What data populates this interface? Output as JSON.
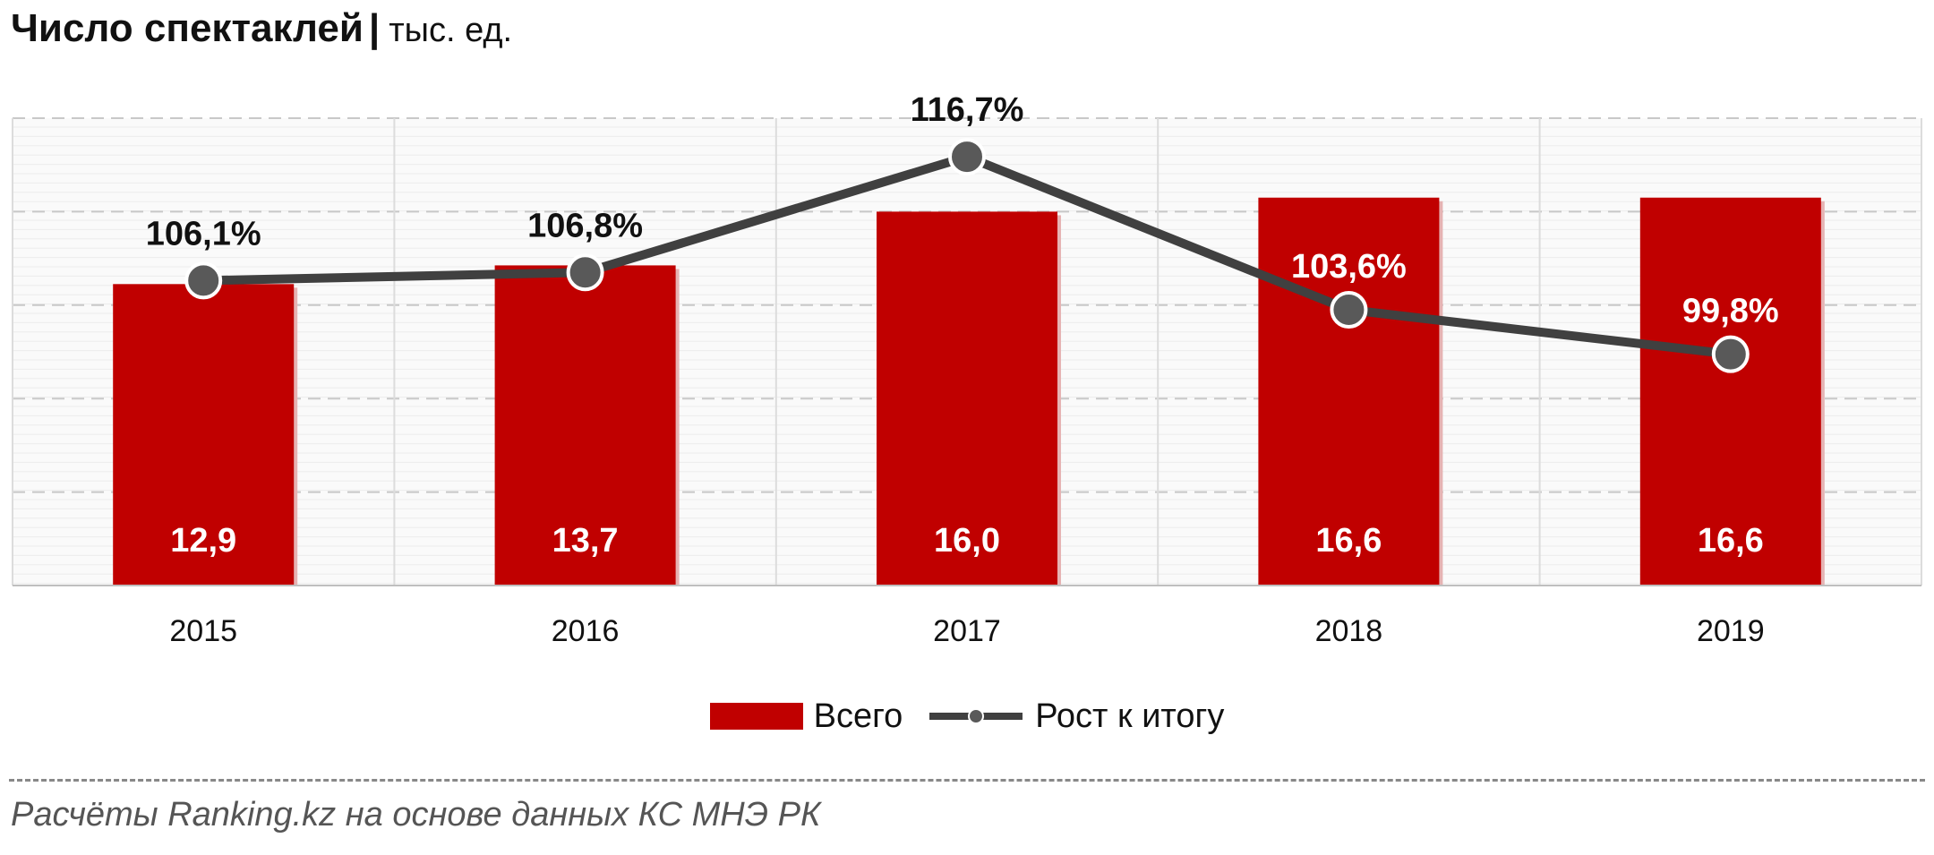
{
  "title": {
    "main": "Число спектаклей",
    "separator": "|",
    "unit": "тыс. ед."
  },
  "colors": {
    "bar": "#c00000",
    "line": "#404040",
    "marker_fill": "#595959",
    "marker_stroke": "#ffffff"
  },
  "chart_data": {
    "type": "bar",
    "categories": [
      "2015",
      "2016",
      "2017",
      "2018",
      "2019"
    ],
    "series": [
      {
        "name": "Всего",
        "type": "bar",
        "values": [
          12.9,
          13.7,
          16.0,
          16.6,
          16.6
        ],
        "labels": [
          "12,9",
          "13,7",
          "16,0",
          "16,6",
          "16,6"
        ]
      },
      {
        "name": "Рост к итогу",
        "type": "line",
        "values": [
          106.1,
          106.8,
          116.7,
          103.6,
          99.8
        ],
        "labels": [
          "106,1%",
          "106,8%",
          "116,7%",
          "103,6%",
          "99,8%"
        ]
      }
    ],
    "primary_axis": {
      "min": 0,
      "max": 20,
      "ticks_shown": false
    },
    "secondary_axis": {
      "min": 80,
      "max": 120,
      "ticks_shown": false
    },
    "grid": true,
    "legend": "bottom"
  },
  "legend": {
    "bar_label": "Всего",
    "line_label": "Рост к итогу"
  },
  "source": "Расчёты Ranking.kz на основе данных КС МНЭ РК"
}
